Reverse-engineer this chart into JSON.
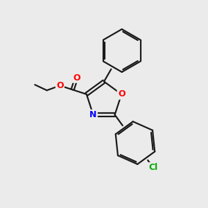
{
  "background_color": "#ebebeb",
  "bond_color": "#1a1a1a",
  "atom_colors": {
    "O": "#ff0000",
    "N": "#0000ff",
    "Cl": "#00aa00"
  },
  "figsize": [
    3.0,
    3.0
  ],
  "dpi": 100
}
